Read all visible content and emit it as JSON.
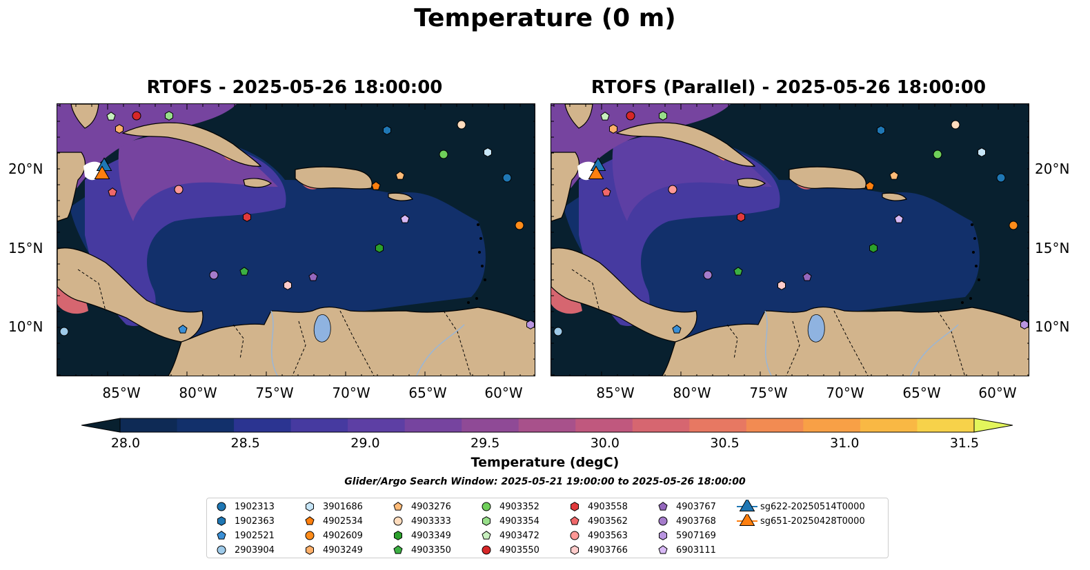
{
  "figure": {
    "title": "Temperature (0 m)",
    "panels": [
      {
        "title": "RTOFS - 2025-05-26 18:00:00"
      },
      {
        "title": "RTOFS (Parallel) - 2025-05-26 18:00:00"
      }
    ],
    "x_ticks": [
      "85°W",
      "80°W",
      "75°W",
      "70°W",
      "65°W",
      "60°W"
    ],
    "y_ticks": [
      "20°N",
      "15°N",
      "10°N"
    ],
    "colorbar": {
      "label": "Temperature (degC)",
      "ticks": [
        "28.0",
        "28.5",
        "29.0",
        "29.5",
        "30.0",
        "30.5",
        "31.0",
        "31.5"
      ],
      "range": [
        28.0,
        31.5
      ],
      "colors": [
        "#0e2a55",
        "#12306b",
        "#2b3491",
        "#463aa0",
        "#5d3fa4",
        "#76449f",
        "#8f4a96",
        "#a8518b",
        "#c0587e",
        "#d66670",
        "#e77862",
        "#f28b52",
        "#f8a046",
        "#f9b844",
        "#f7d24a"
      ],
      "under_color": "#08202f",
      "over_color": "#e3f55c"
    },
    "search_window": "Glider/Argo Search Window: 2025-05-21 19:00:00 to 2025-05-26 18:00:00",
    "legend": [
      {
        "label": "1902313",
        "marker": "circle",
        "color": "#1f77b4"
      },
      {
        "label": "1902363",
        "marker": "hexagon",
        "color": "#1f77b4"
      },
      {
        "label": "1902521",
        "marker": "pentagon",
        "color": "#3a8fd6"
      },
      {
        "label": "2903904",
        "marker": "circle",
        "color": "#9ecae9"
      },
      {
        "label": "3901686",
        "marker": "hexagon",
        "color": "#c6e5f7"
      },
      {
        "label": "4902534",
        "marker": "pentagon",
        "color": "#ff7f0e"
      },
      {
        "label": "4902609",
        "marker": "circle",
        "color": "#ff8c1a"
      },
      {
        "label": "4903249",
        "marker": "hexagon",
        "color": "#ffb06a"
      },
      {
        "label": "4903276",
        "marker": "pentagon",
        "color": "#ffbb78"
      },
      {
        "label": "4903333",
        "marker": "circle",
        "color": "#ffdcbd"
      },
      {
        "label": "4903349",
        "marker": "hexagon",
        "color": "#2ca02c"
      },
      {
        "label": "4903350",
        "marker": "pentagon",
        "color": "#3cb043"
      },
      {
        "label": "4903352",
        "marker": "circle",
        "color": "#6fcf5a"
      },
      {
        "label": "4903354",
        "marker": "hexagon",
        "color": "#98df8a"
      },
      {
        "label": "4903472",
        "marker": "pentagon",
        "color": "#c8f0bf"
      },
      {
        "label": "4903550",
        "marker": "circle",
        "color": "#d62728"
      },
      {
        "label": "4903558",
        "marker": "hexagon",
        "color": "#e0393b"
      },
      {
        "label": "4903562",
        "marker": "pentagon",
        "color": "#f0686a"
      },
      {
        "label": "4903563",
        "marker": "circle",
        "color": "#ff9896"
      },
      {
        "label": "4903766",
        "marker": "hexagon",
        "color": "#ffcccb"
      },
      {
        "label": "4903767",
        "marker": "pentagon",
        "color": "#9467bd"
      },
      {
        "label": "4903768",
        "marker": "circle",
        "color": "#a57ccb"
      },
      {
        "label": "5907169",
        "marker": "hexagon",
        "color": "#b995e0"
      },
      {
        "label": "6903111",
        "marker": "pentagon",
        "color": "#d7b8f5"
      },
      {
        "label": "sg622-20250514T0000",
        "marker": "triangle",
        "color": "#1f77b4"
      },
      {
        "label": "sg651-20250428T0000",
        "marker": "triangle",
        "color": "#ff7f0e"
      }
    ],
    "land_color": "#d2b48c",
    "ocean_base_color": "#08202f"
  }
}
